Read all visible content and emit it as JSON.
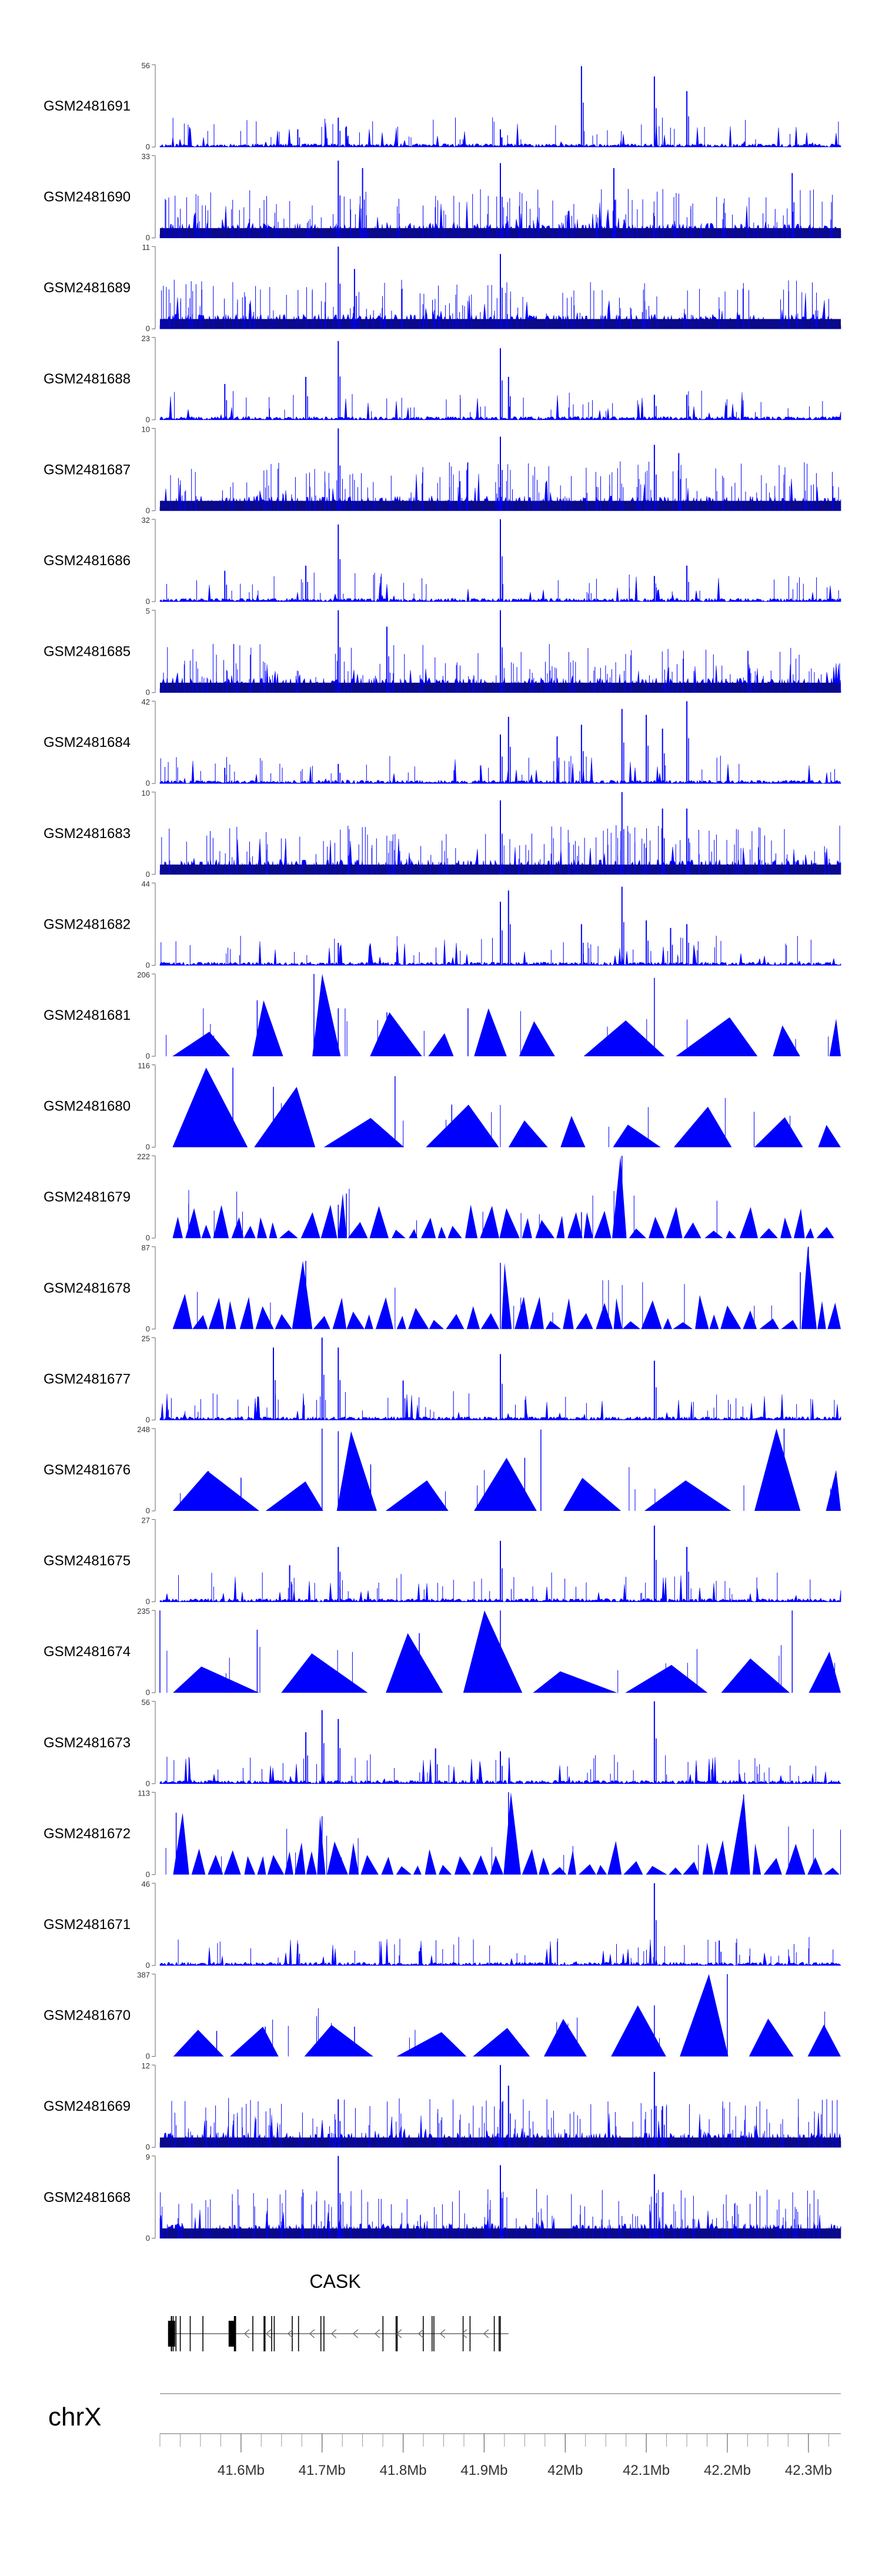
{
  "chart_data": {
    "type": "area",
    "title": "",
    "chromosome": "chrX",
    "xlabel": "",
    "xlim": [
      41.5,
      42.34
    ],
    "xaxis_unit": "Mb",
    "xaxis_labels": [
      {
        "value": 41.6,
        "label": "41.6Mb"
      },
      {
        "value": 41.7,
        "label": "41.7Mb"
      },
      {
        "value": 41.8,
        "label": "41.8Mb"
      },
      {
        "value": 41.9,
        "label": "41.9Mb"
      },
      {
        "value": 42.0,
        "label": "42Mb"
      },
      {
        "value": 42.1,
        "label": "42.1Mb"
      },
      {
        "value": 42.2,
        "label": "42.2Mb"
      },
      {
        "value": 42.3,
        "label": "42.3Mb"
      }
    ],
    "minor_tick_step_mb": 0.025,
    "color": "#0000ff",
    "tracks": [
      {
        "name": "GSM2481691",
        "ymin": 0,
        "ymax": 56,
        "style": "peaks",
        "seed": 11,
        "peaks": [
          [
            41.67,
            12
          ],
          [
            41.72,
            20
          ],
          [
            41.73,
            14
          ],
          [
            41.92,
            12
          ],
          [
            42.02,
            55
          ],
          [
            42.11,
            48
          ],
          [
            42.15,
            38
          ]
        ]
      },
      {
        "name": "GSM2481690",
        "ymin": 0,
        "ymax": 33,
        "style": "dense",
        "seed": 23,
        "peaks": [
          [
            41.72,
            31
          ],
          [
            41.92,
            30
          ],
          [
            41.75,
            28
          ],
          [
            42.06,
            28
          ],
          [
            42.28,
            26
          ]
        ]
      },
      {
        "name": "GSM2481689",
        "ymin": 0,
        "ymax": 11,
        "style": "dense",
        "seed": 37,
        "peaks": [
          [
            41.72,
            11
          ],
          [
            41.92,
            10
          ],
          [
            41.74,
            8
          ]
        ]
      },
      {
        "name": "GSM2481688",
        "ymin": 0,
        "ymax": 23,
        "style": "peaks",
        "seed": 41,
        "peaks": [
          [
            41.58,
            10
          ],
          [
            41.68,
            12
          ],
          [
            41.72,
            22
          ],
          [
            41.92,
            20
          ],
          [
            41.93,
            12
          ],
          [
            42.11,
            7
          ],
          [
            42.15,
            7
          ]
        ]
      },
      {
        "name": "GSM2481687",
        "ymin": 0,
        "ymax": 10,
        "style": "dense",
        "seed": 53,
        "peaks": [
          [
            41.72,
            10
          ],
          [
            41.92,
            9
          ],
          [
            42.11,
            8
          ],
          [
            42.14,
            7
          ]
        ]
      },
      {
        "name": "GSM2481686",
        "ymin": 0,
        "ymax": 32,
        "style": "peaks",
        "seed": 61,
        "peaks": [
          [
            41.58,
            12
          ],
          [
            41.68,
            14
          ],
          [
            41.72,
            30
          ],
          [
            41.92,
            32
          ],
          [
            42.11,
            10
          ],
          [
            42.15,
            14
          ]
        ]
      },
      {
        "name": "GSM2481685",
        "ymin": 0,
        "ymax": 5,
        "style": "dense",
        "seed": 71,
        "peaks": [
          [
            41.72,
            5
          ],
          [
            41.92,
            5
          ],
          [
            41.78,
            4
          ]
        ]
      },
      {
        "name": "GSM2481684",
        "ymin": 0,
        "ymax": 42,
        "style": "peaks",
        "seed": 83,
        "peaks": [
          [
            41.58,
            8
          ],
          [
            41.72,
            10
          ],
          [
            41.92,
            25
          ],
          [
            41.93,
            34
          ],
          [
            41.99,
            24
          ],
          [
            42.02,
            30
          ],
          [
            42.07,
            38
          ],
          [
            42.1,
            35
          ],
          [
            42.12,
            28
          ],
          [
            42.15,
            42
          ]
        ]
      },
      {
        "name": "GSM2481683",
        "ymin": 0,
        "ymax": 10,
        "style": "dense",
        "seed": 97,
        "peaks": [
          [
            41.92,
            9
          ],
          [
            42.07,
            10
          ],
          [
            42.12,
            8
          ],
          [
            42.15,
            8
          ]
        ]
      },
      {
        "name": "GSM2481682",
        "ymin": 0,
        "ymax": 44,
        "style": "peaks",
        "seed": 101,
        "peaks": [
          [
            41.72,
            12
          ],
          [
            41.92,
            34
          ],
          [
            41.93,
            40
          ],
          [
            42.02,
            22
          ],
          [
            42.07,
            42
          ],
          [
            42.1,
            24
          ],
          [
            42.13,
            20
          ],
          [
            42.15,
            22
          ]
        ]
      },
      {
        "name": "GSM2481681",
        "ymin": 0,
        "ymax": 206,
        "style": "triangles",
        "seed": 113,
        "peaks": [
          [
            41.69,
            206
          ],
          [
            42.11,
            196
          ],
          [
            41.62,
            140
          ],
          [
            41.72,
            120
          ],
          [
            41.78,
            110
          ],
          [
            41.88,
            120
          ]
        ]
      },
      {
        "name": "GSM2481680",
        "ymin": 0,
        "ymax": 116,
        "style": "triangles",
        "seed": 127,
        "peaks": [
          [
            41.54,
            60
          ],
          [
            41.59,
            112
          ],
          [
            41.64,
            85
          ],
          [
            41.79,
            100
          ],
          [
            41.86,
            60
          ]
        ]
      },
      {
        "name": "GSM2481679",
        "ymin": 0,
        "ymax": 222,
        "style": "triangles_small",
        "seed": 131,
        "peaks": [
          [
            42.07,
            222
          ],
          [
            41.73,
            120
          ],
          [
            42.02,
            70
          ],
          [
            41.72,
            90
          ]
        ]
      },
      {
        "name": "GSM2481678",
        "ymin": 0,
        "ymax": 87,
        "style": "triangles_small",
        "seed": 139,
        "peaks": [
          [
            41.68,
            72
          ],
          [
            41.92,
            70
          ],
          [
            42.3,
            87
          ],
          [
            42.29,
            60
          ]
        ]
      },
      {
        "name": "GSM2481677",
        "ymin": 0,
        "ymax": 25,
        "style": "peaks",
        "seed": 149,
        "peaks": [
          [
            41.64,
            22
          ],
          [
            41.7,
            25
          ],
          [
            41.72,
            22
          ],
          [
            41.92,
            20
          ],
          [
            42.11,
            18
          ],
          [
            41.8,
            12
          ]
        ]
      },
      {
        "name": "GSM2481676",
        "ymin": 0,
        "ymax": 248,
        "style": "triangles",
        "seed": 151,
        "peaks": [
          [
            41.7,
            248
          ],
          [
            41.72,
            240
          ],
          [
            41.97,
            245
          ],
          [
            42.27,
            248
          ],
          [
            41.76,
            140
          ],
          [
            41.95,
            160
          ],
          [
            41.56,
            120
          ],
          [
            41.6,
            100
          ]
        ]
      },
      {
        "name": "GSM2481675",
        "ymin": 0,
        "ymax": 27,
        "style": "peaks",
        "seed": 163,
        "peaks": [
          [
            41.72,
            18
          ],
          [
            41.92,
            20
          ],
          [
            42.11,
            25
          ],
          [
            42.15,
            18
          ],
          [
            41.66,
            12
          ]
        ]
      },
      {
        "name": "GSM2481674",
        "ymin": 0,
        "ymax": 235,
        "style": "triangles",
        "seed": 173,
        "peaks": [
          [
            41.5,
            235
          ],
          [
            41.92,
            235
          ],
          [
            42.28,
            235
          ],
          [
            41.62,
            180
          ],
          [
            41.82,
            170
          ]
        ]
      },
      {
        "name": "GSM2481673",
        "ymin": 0,
        "ymax": 56,
        "style": "peaks",
        "seed": 181,
        "peaks": [
          [
            41.7,
            50
          ],
          [
            41.72,
            44
          ],
          [
            41.68,
            35
          ],
          [
            42.11,
            56
          ],
          [
            41.84,
            24
          ],
          [
            41.92,
            22
          ]
        ]
      },
      {
        "name": "GSM2481672",
        "ymin": 0,
        "ymax": 113,
        "style": "triangles_small",
        "seed": 191,
        "peaks": [
          [
            41.93,
            113
          ],
          [
            42.22,
            110
          ],
          [
            41.7,
            80
          ],
          [
            41.52,
            85
          ]
        ]
      },
      {
        "name": "GSM2481671",
        "ymin": 0,
        "ymax": 46,
        "style": "peaks",
        "seed": 197,
        "peaks": [
          [
            42.11,
            46
          ],
          [
            42.19,
            14
          ],
          [
            41.67,
            12
          ],
          [
            41.82,
            8
          ]
        ]
      },
      {
        "name": "GSM2481670",
        "ymin": 0,
        "ymax": 387,
        "style": "triangles",
        "seed": 211,
        "peaks": [
          [
            42.2,
            387
          ],
          [
            42.11,
            240
          ],
          [
            41.74,
            140
          ],
          [
            41.57,
            120
          ],
          [
            41.63,
            140
          ]
        ]
      },
      {
        "name": "GSM2481669",
        "ymin": 0,
        "ymax": 12,
        "style": "dense",
        "seed": 223,
        "peaks": [
          [
            41.92,
            12
          ],
          [
            41.93,
            9
          ],
          [
            42.11,
            11
          ],
          [
            42.12,
            6
          ],
          [
            41.72,
            7
          ]
        ]
      },
      {
        "name": "GSM2481668",
        "ymin": 0,
        "ymax": 9,
        "style": "dense",
        "seed": 229,
        "peaks": [
          [
            41.72,
            9
          ],
          [
            41.92,
            8
          ],
          [
            42.11,
            7
          ]
        ]
      }
    ],
    "gene_track": {
      "gene": "CASK",
      "strand": "-",
      "start_mb": 41.51,
      "end_mb": 41.93
    }
  }
}
